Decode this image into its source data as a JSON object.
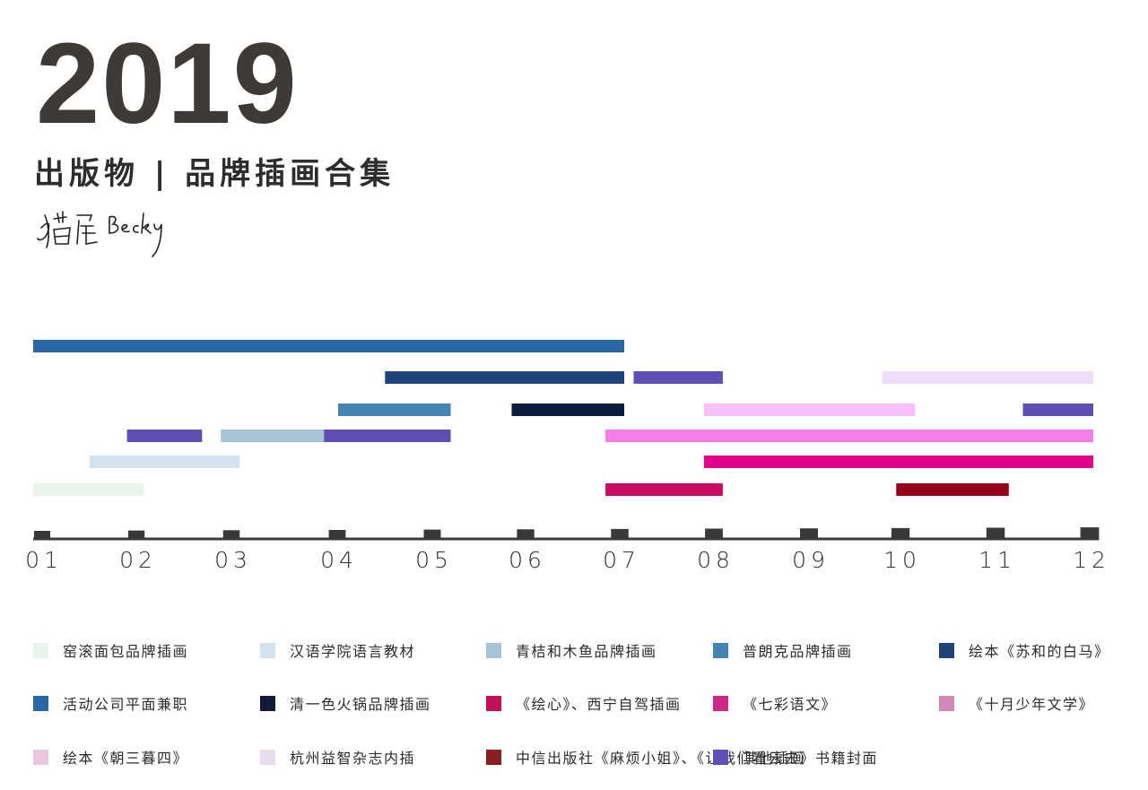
{
  "header": {
    "year": "2019",
    "subtitle": "出版物 | 品牌插画合集",
    "signature_text": "猫屋 Becky"
  },
  "chart_data": {
    "type": "bar",
    "orientation": "horizontal-timeline",
    "xlabel": "",
    "ylabel": "",
    "x_tick_labels": [
      "01",
      "02",
      "03",
      "04",
      "05",
      "06",
      "07",
      "08",
      "09",
      "10",
      "11",
      "12"
    ],
    "xlim": [
      1,
      12.3
    ],
    "grid": false,
    "legend_position": "bottom",
    "series": [
      {
        "name": "窑滚面包品牌插画",
        "color": "#e8f5ec",
        "row": 6,
        "segments": [
          [
            1.0,
            2.18
          ]
        ]
      },
      {
        "name": "汉语学院语言教材",
        "color": "#d4e2ee",
        "row": 5,
        "segments": [
          [
            1.6,
            3.2
          ]
        ]
      },
      {
        "name": "青桔和木鱼品牌插画",
        "color": "#a6c3d8",
        "row": 4,
        "segments": [
          [
            3.0,
            4.32
          ]
        ]
      },
      {
        "name": "普朗克品牌插画",
        "color": "#4385b0",
        "row": 3,
        "segments": [
          [
            4.25,
            5.45
          ]
        ]
      },
      {
        "name": "绘本《苏和的白马》",
        "color": "#1e4479",
        "row": 2,
        "segments": [
          [
            4.75,
            7.3
          ]
        ]
      },
      {
        "name": "活动公司平面兼职",
        "color": "#2868a6",
        "row": 1,
        "segments": [
          [
            1.0,
            7.3
          ]
        ]
      },
      {
        "name": "清一色火锅品牌插画",
        "color": "#0b1a3f",
        "row": 3,
        "segments": [
          [
            6.1,
            7.3
          ]
        ]
      },
      {
        "name": "《绘心》、西宁自驾插画",
        "color": "#c90b62",
        "row": 6,
        "segments": [
          [
            7.1,
            8.35
          ]
        ]
      },
      {
        "name": "《七彩语文》",
        "color": "#e0028a",
        "row": 5,
        "segments": [
          [
            8.15,
            12.3
          ]
        ]
      },
      {
        "name": "《十月少年文学》",
        "color": "#f77ee8",
        "row": 4,
        "segments": [
          [
            7.1,
            12.3
          ]
        ]
      },
      {
        "name": "绘本《朝三暮四》",
        "color": "#fac0fa",
        "row": 3,
        "segments": [
          [
            8.15,
            10.4
          ]
        ]
      },
      {
        "name": "杭州益智杂志内插",
        "color": "#eedefa",
        "row": 2,
        "segments": [
          [
            10.05,
            12.3
          ]
        ]
      },
      {
        "name": "中信出版社《麻烦小姐》、《让我们看云去》书籍封面",
        "color": "#970019",
        "row": 6,
        "segments": [
          [
            10.2,
            11.4
          ]
        ]
      },
      {
        "name": "其他插画",
        "color": "#604eb5",
        "row": [
          4,
          2,
          3
        ],
        "segments": [
          [
            2.0,
            2.8
          ],
          [
            4.1,
            5.45
          ],
          [
            7.4,
            8.35
          ],
          [
            11.55,
            12.3
          ]
        ],
        "segment_rows": [
          4,
          4,
          2,
          3
        ]
      }
    ]
  },
  "legend": {
    "items": [
      {
        "label": "窑滚面包品牌插画",
        "color": "#e8f5ec"
      },
      {
        "label": "汉语学院语言教材",
        "color": "#d4e2ee"
      },
      {
        "label": "青桔和木鱼品牌插画",
        "color": "#a6c3d8"
      },
      {
        "label": "普朗克品牌插画",
        "color": "#4385b0"
      },
      {
        "label": "绘本《苏和的白马》",
        "color": "#1e4479"
      },
      {
        "label": "活动公司平面兼职",
        "color": "#2868a6"
      },
      {
        "label": "清一色火锅品牌插画",
        "color": "#121c3a"
      },
      {
        "label": "《绘心》、西宁自驾插画",
        "color": "#c20f5a"
      },
      {
        "label": "《七彩语文》",
        "color": "#cc2a86"
      },
      {
        "label": "《十月少年文学》",
        "color": "#cf89b5"
      },
      {
        "label": "绘本《朝三暮四》",
        "color": "#e9c5de"
      },
      {
        "label": "杭州益智杂志内插",
        "color": "#e9dcee"
      },
      {
        "label": "中信出版社《麻烦小姐》、《让我们看云去》书籍封面",
        "color": "#8b1e23"
      },
      {
        "label": "其他插画",
        "color": "#604fb7"
      }
    ]
  },
  "colors": {
    "axis": "#3a3838",
    "text_dark": "#3d3a38"
  }
}
